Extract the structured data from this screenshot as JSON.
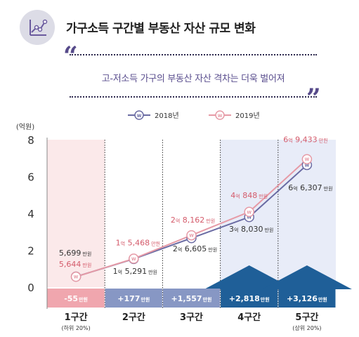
{
  "header": {
    "title": "가구소득 구간별 부동산 자산 규모 변화",
    "subtitle": "고-저소득 가구의 부동산 자산 격차는 더욱 벌어져"
  },
  "colors": {
    "series2018": "#6a6ba3",
    "series2019": "#e69aa6",
    "label2019": "#d45a6a",
    "band1": "#fbe9ea",
    "band4_5": "#e8ecf8",
    "diff1": "#f0a6ae",
    "diff2_3": "#8797c4",
    "diff4_5": "#1f5f98"
  },
  "chart_data": {
    "type": "line",
    "categories": [
      "1구간",
      "2구간",
      "3구간",
      "4구간",
      "5구간"
    ],
    "category_notes": [
      "(하위 20%)",
      "",
      "",
      "",
      "(상위 20%)"
    ],
    "ylabel": "(억원)",
    "ylim": [
      0,
      8
    ],
    "yticks": [
      "0",
      "2",
      "4",
      "6",
      "8"
    ],
    "series": [
      {
        "name": "2018년",
        "values": [
          0.5699,
          1.5291,
          2.6605,
          3.803,
          6.6307
        ],
        "labels": [
          {
            "a": "5,699",
            "b": "",
            "c": ""
          },
          {
            "a": "1",
            "b": "억",
            "c": " 5,291"
          },
          {
            "a": "2",
            "b": "억",
            "c": " 6,605"
          },
          {
            "a": "3",
            "b": "억",
            "c": " 8,030"
          },
          {
            "a": "6",
            "b": "억",
            "c": " 6,307"
          }
        ]
      },
      {
        "name": "2019년",
        "values": [
          0.5644,
          1.5468,
          2.8162,
          4.0848,
          6.9433
        ],
        "labels": [
          {
            "a": "5,644",
            "b": "",
            "c": ""
          },
          {
            "a": "1",
            "b": "억",
            "c": " 5,468"
          },
          {
            "a": "2",
            "b": "억",
            "c": " 8,162"
          },
          {
            "a": "4",
            "b": "억",
            "c": " 848"
          },
          {
            "a": "6",
            "b": "억",
            "c": " 9,433"
          }
        ]
      }
    ],
    "unit": "만원",
    "marker": "W",
    "differences": [
      "-55",
      "+177",
      "+1,557",
      "+2,818",
      "+3,126"
    ],
    "grid": false,
    "legend_position": "top-center"
  }
}
